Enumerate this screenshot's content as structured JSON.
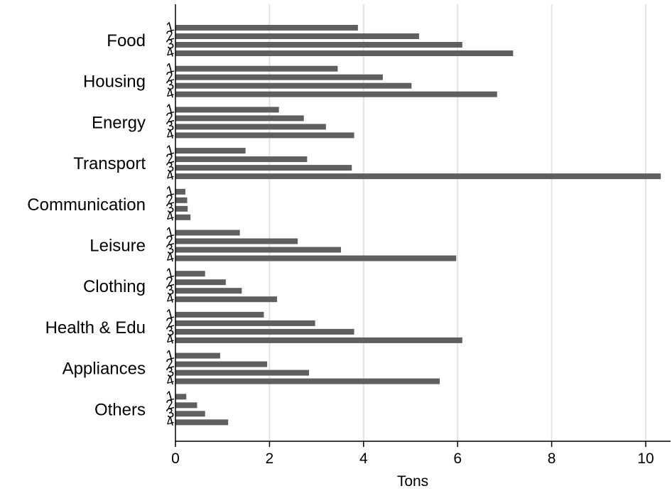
{
  "chart_data": {
    "type": "bar",
    "orientation": "horizontal",
    "categories": [
      "Food",
      "Housing",
      "Energy",
      "Transport",
      "Communication",
      "Leisure",
      "Clothing",
      "Health & Edu",
      "Appliances",
      "Others"
    ],
    "sub_labels": [
      "1",
      "2",
      "3",
      "4"
    ],
    "values": [
      [
        3.88,
        5.18,
        6.1,
        7.18
      ],
      [
        3.45,
        4.41,
        5.02,
        6.84
      ],
      [
        2.2,
        2.73,
        3.2,
        3.8
      ],
      [
        1.49,
        2.8,
        3.75,
        10.32
      ],
      [
        0.21,
        0.25,
        0.26,
        0.32
      ],
      [
        1.37,
        2.6,
        3.52,
        5.97
      ],
      [
        0.63,
        1.07,
        1.41,
        2.16
      ],
      [
        1.88,
        2.97,
        3.8,
        6.1
      ],
      [
        0.95,
        1.95,
        2.84,
        5.62
      ],
      [
        0.23,
        0.46,
        0.63,
        1.12
      ]
    ],
    "xlabel": "Tons",
    "ylabel": "",
    "xlim": [
      0,
      10.5
    ],
    "xticks": [
      "0",
      "2",
      "4",
      "6",
      "8",
      "10"
    ],
    "grid": true,
    "bar_color": "#5f5f5f",
    "grid_color": "#e3e3e3"
  }
}
